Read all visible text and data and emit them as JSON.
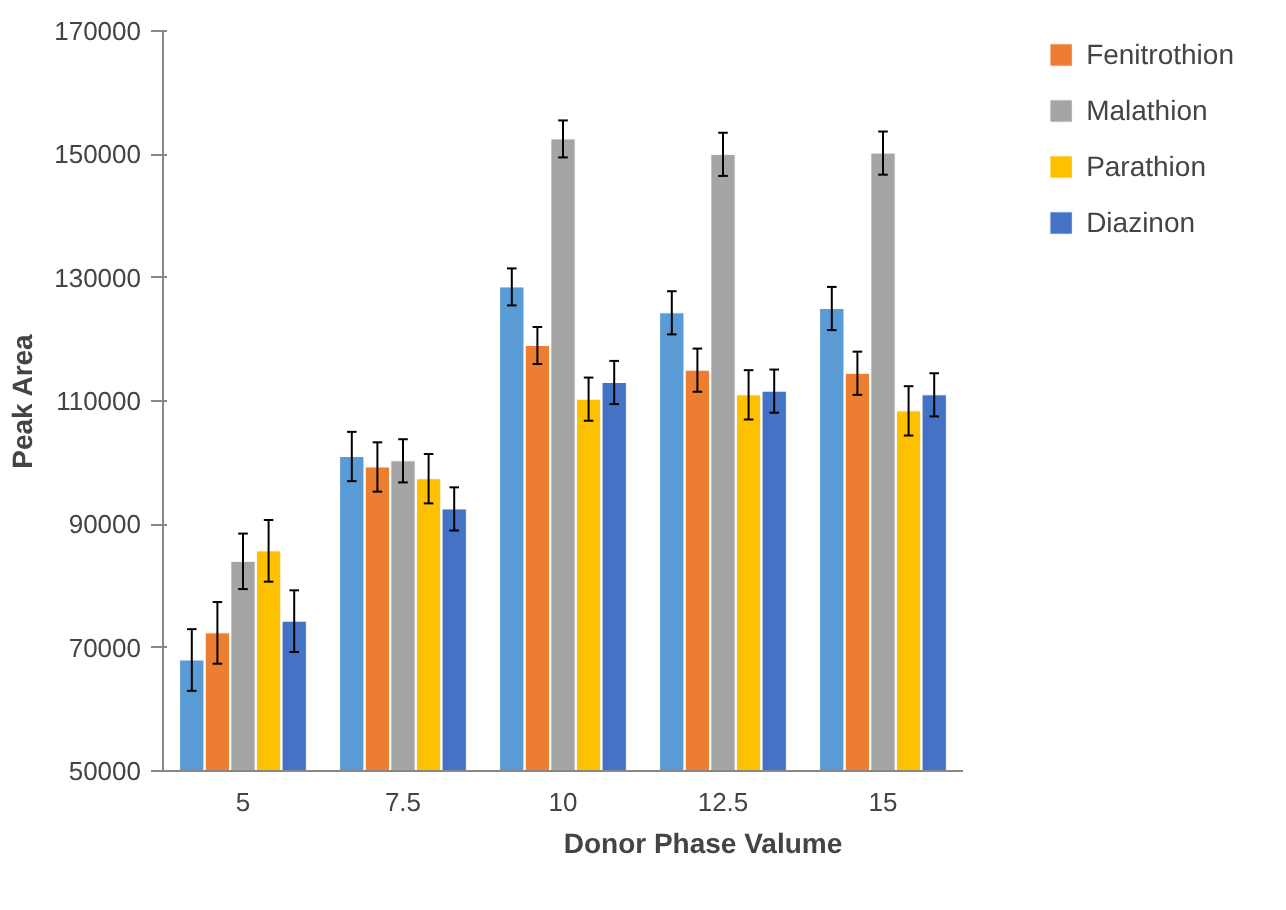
{
  "chart_data": {
    "type": "bar",
    "xlabel": "Donor Phase Valume",
    "ylabel": "Peak Area",
    "categories": [
      "5",
      "7.5",
      "10",
      "12.5",
      "15"
    ],
    "ylim": [
      50000,
      170000
    ],
    "yticks": [
      50000,
      70000,
      90000,
      110000,
      130000,
      150000,
      170000
    ],
    "grid": false,
    "legend": "right",
    "series": [
      {
        "color": "#5b9bd5",
        "values": [
          68000,
          101000,
          128500,
          124300,
          125000
        ],
        "errors": [
          5000,
          4000,
          3000,
          3500,
          3500
        ]
      },
      {
        "name": "Fenitrothion",
        "color": "#ed7d31",
        "values": [
          72400,
          99300,
          119000,
          115000,
          114500
        ],
        "errors": [
          5000,
          4000,
          3000,
          3500,
          3500
        ]
      },
      {
        "name": "Malathion",
        "color": "#a5a5a5",
        "values": [
          84000,
          100300,
          152500,
          150000,
          150200
        ],
        "errors": [
          4500,
          3500,
          3000,
          3500,
          3500
        ]
      },
      {
        "name": "Parathion",
        "color": "#ffc000",
        "values": [
          85700,
          97400,
          110300,
          111000,
          108400
        ],
        "errors": [
          5000,
          4000,
          3500,
          4000,
          4000
        ]
      },
      {
        "name": "Diazinon",
        "color": "#4472c4",
        "values": [
          74300,
          92500,
          113000,
          111600,
          111000
        ],
        "errors": [
          5000,
          3500,
          3500,
          3500,
          3500
        ]
      }
    ]
  }
}
